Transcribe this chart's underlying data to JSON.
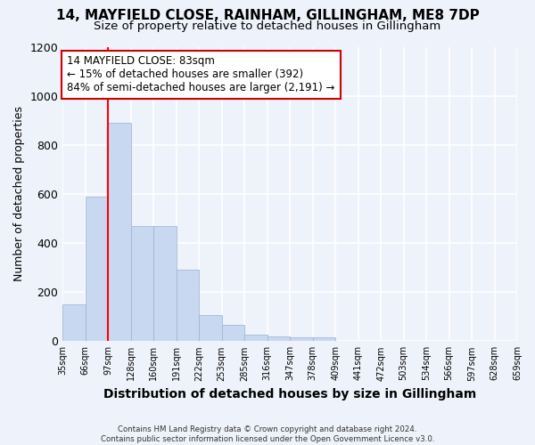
{
  "title1": "14, MAYFIELD CLOSE, RAINHAM, GILLINGHAM, ME8 7DP",
  "title2": "Size of property relative to detached houses in Gillingham",
  "xlabel": "Distribution of detached houses by size in Gillingham",
  "ylabel": "Number of detached properties",
  "footnote": "Contains HM Land Registry data © Crown copyright and database right 2024.\nContains public sector information licensed under the Open Government Licence v3.0.",
  "bin_labels": [
    "35sqm",
    "66sqm",
    "97sqm",
    "128sqm",
    "160sqm",
    "191sqm",
    "222sqm",
    "253sqm",
    "285sqm",
    "316sqm",
    "347sqm",
    "378sqm",
    "409sqm",
    "441sqm",
    "472sqm",
    "503sqm",
    "534sqm",
    "566sqm",
    "597sqm",
    "628sqm",
    "659sqm"
  ],
  "bar_values": [
    150,
    590,
    890,
    470,
    470,
    290,
    105,
    65,
    28,
    20,
    15,
    15,
    0,
    0,
    0,
    0,
    0,
    0,
    0,
    0
  ],
  "bar_color": "#c8d8f0",
  "bar_edge_color": "#9ab0d0",
  "red_line_x": 2.0,
  "annotation_text": "14 MAYFIELD CLOSE: 83sqm\n← 15% of detached houses are smaller (392)\n84% of semi-detached houses are larger (2,191) →",
  "annotation_box_color": "#ffffff",
  "annotation_box_edge": "#cc0000",
  "ylim": [
    0,
    1200
  ],
  "yticks": [
    0,
    200,
    400,
    600,
    800,
    1000,
    1200
  ],
  "background_color": "#eef2fa",
  "grid_color": "#ffffff",
  "title_fontsize": 11,
  "subtitle_fontsize": 9.5,
  "ylabel_fontsize": 9,
  "xlabel_fontsize": 10
}
